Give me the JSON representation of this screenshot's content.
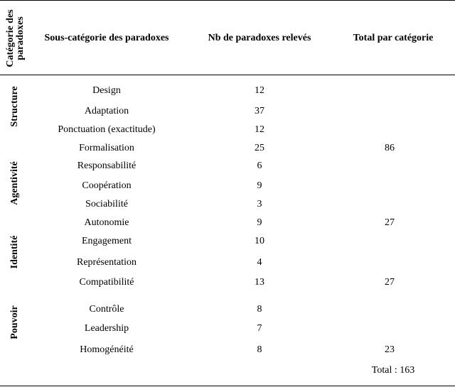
{
  "table": {
    "header": {
      "category_line1": "Catégorie des",
      "category_line2": "paradoxes",
      "subcategory": "Sous-catégorie des paradoxes",
      "count": "Nb de paradoxes relevés",
      "total": "Total par catégorie"
    },
    "categories": [
      {
        "label": "Structure"
      },
      {
        "label": "Agentivité"
      },
      {
        "label": "Identité"
      },
      {
        "label": "Pouvoir"
      }
    ],
    "rows": [
      {
        "sub": "Design",
        "count": "12",
        "total": ""
      },
      {
        "sub": "Adaptation",
        "count": "37",
        "total": ""
      },
      {
        "sub": "Ponctuation (exactitude)",
        "count": "12",
        "total": ""
      },
      {
        "sub": "Formalisation",
        "count": "25",
        "total": "86"
      },
      {
        "sub": "Responsabilité",
        "count": "6",
        "total": ""
      },
      {
        "sub": "Coopération",
        "count": "9",
        "total": ""
      },
      {
        "sub": "Sociabilité",
        "count": "3",
        "total": ""
      },
      {
        "sub": "Autonomie",
        "count": "9",
        "total": "27"
      },
      {
        "sub": "Engagement",
        "count": "10",
        "total": ""
      },
      {
        "sub": "Représentation",
        "count": "4",
        "total": ""
      },
      {
        "sub": "Compatibilité",
        "count": "13",
        "total": "27"
      },
      {
        "sub": "Contrôle",
        "count": "8",
        "total": ""
      },
      {
        "sub": "Leadership",
        "count": "7",
        "total": ""
      },
      {
        "sub": "Homogénéité",
        "count": "8",
        "total": "23"
      }
    ],
    "grand_total": "Total : 163"
  }
}
